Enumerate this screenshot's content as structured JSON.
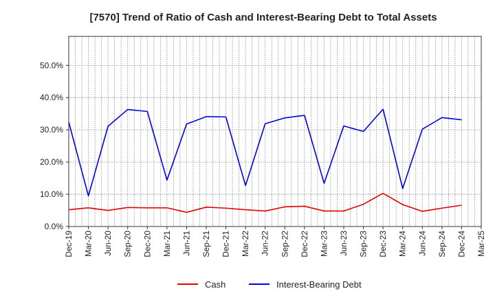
{
  "chart_data": {
    "type": "line",
    "title": "[7570]  Trend of Ratio of Cash and Interest-Bearing Debt to Total Assets",
    "xlabel": "",
    "ylabel": "",
    "ylim": [
      0,
      0.59
    ],
    "y_ticks": [
      0,
      0.1,
      0.2,
      0.3,
      0.4,
      0.5
    ],
    "y_tick_labels": [
      "0.0%",
      "10.0%",
      "20.0%",
      "30.0%",
      "40.0%",
      "50.0%"
    ],
    "x_range": [
      "Dec-19",
      "Mar-25"
    ],
    "x_tick_labels": [
      "Dec-19",
      "Mar-20",
      "Jun-20",
      "Sep-20",
      "Dec-20",
      "Mar-21",
      "Jun-21",
      "Sep-21",
      "Dec-21",
      "Mar-22",
      "Jun-22",
      "Sep-22",
      "Dec-22",
      "Mar-23",
      "Jun-23",
      "Sep-23",
      "Dec-23",
      "Mar-24",
      "Jun-24",
      "Sep-24",
      "Dec-24",
      "Mar-25"
    ],
    "grid": true,
    "legend_position": "bottom",
    "series": [
      {
        "name": "Cash",
        "color": "#e00000",
        "x": [
          "Dec-19",
          "Mar-20",
          "Jun-20",
          "Sep-20",
          "Dec-20",
          "Mar-21",
          "Jun-21",
          "Sep-21",
          "Dec-21",
          "Mar-22",
          "Jun-22",
          "Sep-22",
          "Dec-22",
          "Mar-23",
          "Jun-23",
          "Sep-23",
          "Dec-23",
          "Mar-24",
          "Jun-24",
          "Sep-24",
          "Dec-24"
        ],
        "values": [
          0.052,
          0.058,
          0.05,
          0.059,
          0.058,
          0.058,
          0.044,
          0.06,
          0.057,
          0.052,
          0.048,
          0.061,
          0.063,
          0.048,
          0.048,
          0.069,
          0.103,
          0.068,
          0.047,
          0.057,
          0.066
        ]
      },
      {
        "name": "Interest-Bearing Debt",
        "color": "#0000e0",
        "x": [
          "Dec-19",
          "Mar-20",
          "Jun-20",
          "Sep-20",
          "Dec-20",
          "Mar-21",
          "Jun-21",
          "Sep-21",
          "Dec-21",
          "Mar-22",
          "Jun-22",
          "Sep-22",
          "Dec-22",
          "Mar-23",
          "Jun-23",
          "Sep-23",
          "Dec-23",
          "Mar-24",
          "Jun-24",
          "Sep-24",
          "Dec-24"
        ],
        "values": [
          0.324,
          0.095,
          0.311,
          0.363,
          0.357,
          0.144,
          0.318,
          0.341,
          0.34,
          0.127,
          0.319,
          0.337,
          0.345,
          0.134,
          0.312,
          0.295,
          0.364,
          0.118,
          0.302,
          0.338,
          0.331
        ]
      }
    ]
  }
}
